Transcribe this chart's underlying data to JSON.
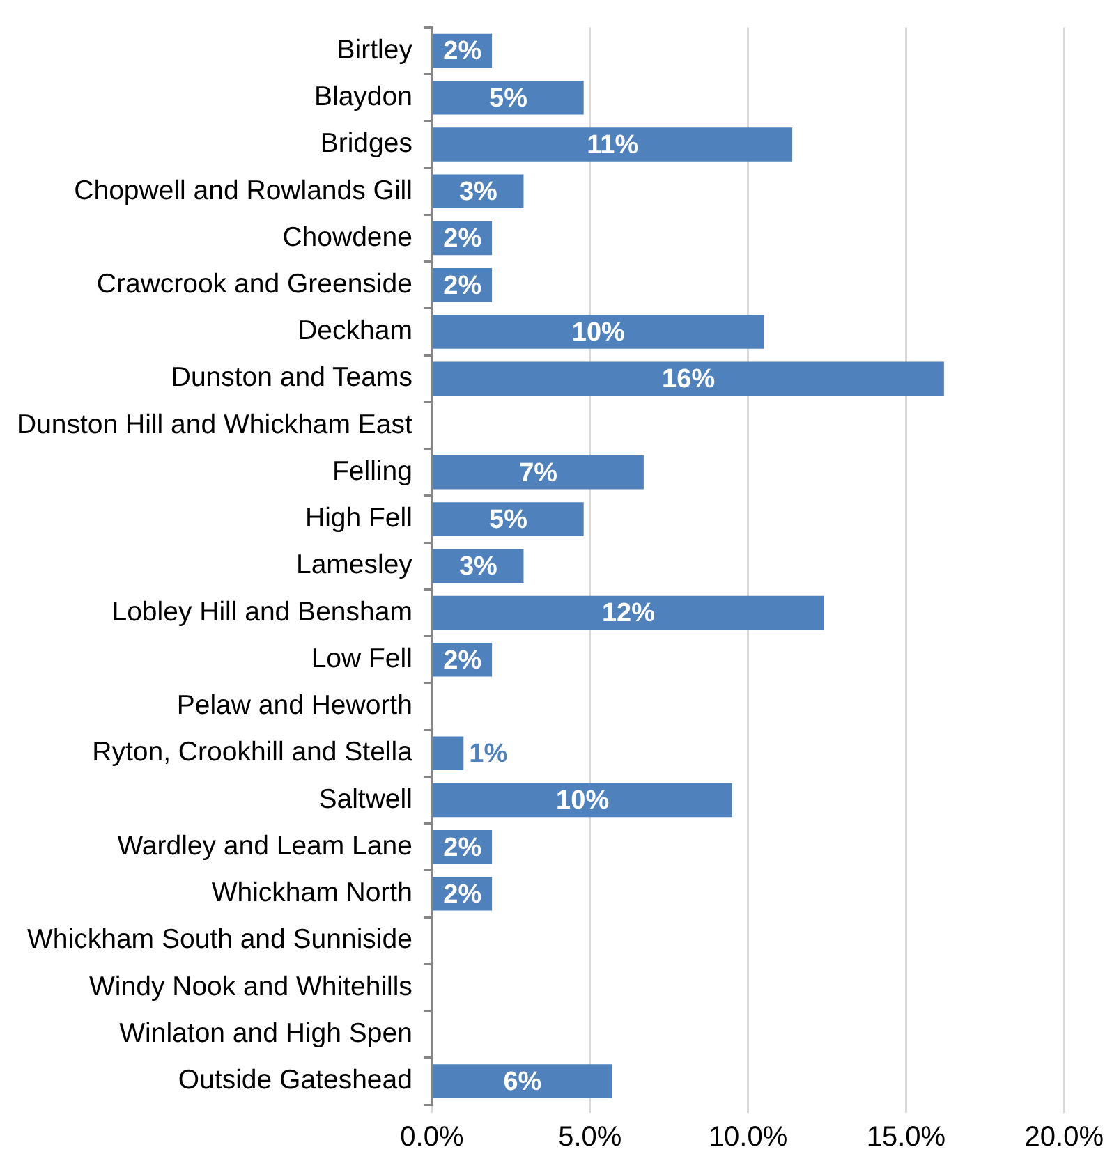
{
  "chart_data": {
    "type": "bar",
    "orientation": "horizontal",
    "color": "#4f81bd",
    "categories": [
      "Birtley",
      "Blaydon",
      "Bridges",
      "Chopwell and Rowlands Gill",
      "Chowdene",
      "Crawcrook and Greenside",
      "Deckham",
      "Dunston and Teams",
      "Dunston Hill and Whickham East",
      "Felling",
      "High Fell",
      "Lamesley",
      "Lobley Hill and Bensham",
      "Low Fell",
      "Pelaw and Heworth",
      "Ryton, Crookhill and Stella",
      "Saltwell",
      "Wardley and Leam Lane",
      "Whickham North",
      "Whickham South and Sunniside",
      "Windy Nook and Whitehills",
      "Winlaton and High Spen",
      "Outside Gateshead"
    ],
    "values": [
      1.9,
      4.8,
      11.4,
      2.9,
      1.9,
      1.9,
      10.5,
      16.2,
      0,
      6.7,
      4.8,
      2.9,
      12.4,
      1.9,
      0,
      1.0,
      9.5,
      1.9,
      1.9,
      0,
      0,
      0,
      5.7
    ],
    "value_labels": [
      "2%",
      "5%",
      "11%",
      "3%",
      "2%",
      "2%",
      "10%",
      "16%",
      null,
      "7%",
      "5%",
      "3%",
      "12%",
      "2%",
      null,
      "1%",
      "10%",
      "2%",
      "2%",
      null,
      null,
      null,
      "6%"
    ],
    "xlim": [
      0,
      20
    ],
    "xticks": [
      {
        "value": 0,
        "label": "0.0%"
      },
      {
        "value": 5,
        "label": "5.0%"
      },
      {
        "value": 10,
        "label": "10.0%"
      },
      {
        "value": 15,
        "label": "15.0%"
      },
      {
        "value": 20,
        "label": "20.0%"
      }
    ],
    "grid": "x",
    "legend": false
  }
}
